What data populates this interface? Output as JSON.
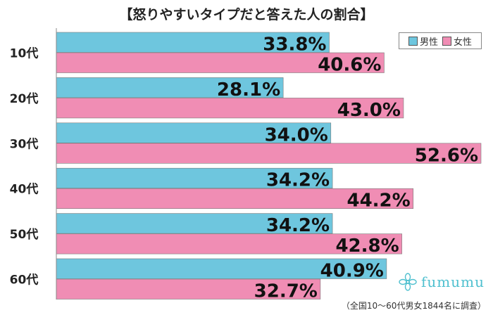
{
  "chart_data": {
    "type": "bar",
    "orientation": "horizontal",
    "title": "【怒りやすいタイプだと答えた人の割合】",
    "categories": [
      "10代",
      "20代",
      "30代",
      "40代",
      "50代",
      "60代"
    ],
    "series": [
      {
        "name": "男性",
        "values": [
          33.8,
          28.1,
          34.0,
          34.2,
          34.2,
          40.9
        ],
        "labels": [
          "33.8%",
          "28.1%",
          "34.0%",
          "34.2%",
          "34.2%",
          "40.9%"
        ],
        "color": "#6ec6de"
      },
      {
        "name": "女性",
        "values": [
          40.6,
          43.0,
          52.6,
          44.2,
          42.8,
          32.7
        ],
        "labels": [
          "40.6%",
          "43.0%",
          "52.6%",
          "44.2%",
          "42.8%",
          "32.7%"
        ],
        "color": "#f08db4"
      }
    ],
    "xlim": [
      0,
      52.6
    ],
    "grid": false,
    "legend_position": "top-right"
  },
  "footnote": "（全国10～60代男女1844名に調査）",
  "logo": {
    "text": "fumumu",
    "icon": "flower-icon"
  },
  "colors": {
    "male": "#6ec6de",
    "female": "#f08db4",
    "axis": "#888888"
  }
}
